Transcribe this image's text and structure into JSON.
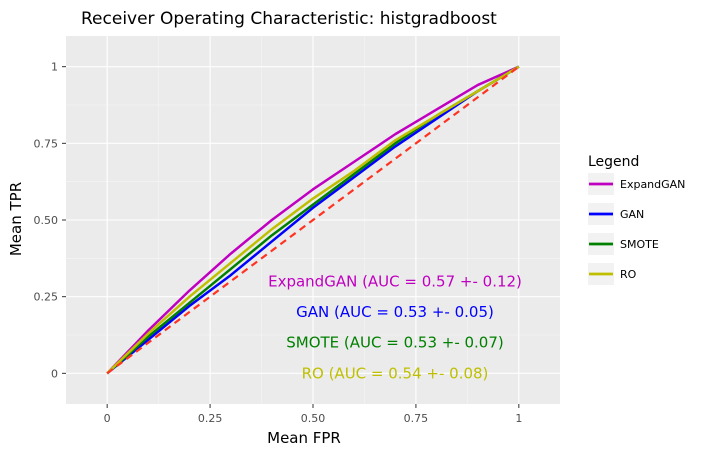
{
  "chart_data": {
    "type": "line",
    "title": "Receiver Operating Characteristic: histgradboost",
    "xlabel": "Mean FPR",
    "ylabel": "Mean TPR",
    "xlim": [
      -0.1,
      1.1
    ],
    "ylim": [
      -0.1,
      1.1
    ],
    "xticks": [
      "0",
      "0.25",
      "0.50",
      "0.75",
      "1"
    ],
    "yticks": [
      "0",
      "0.25",
      "0.50",
      "0.75",
      "1"
    ],
    "grid": true,
    "legend_title": "Legend",
    "legend_position": "right",
    "x": [
      0,
      0.1,
      0.2,
      0.3,
      0.4,
      0.5,
      0.6,
      0.7,
      0.8,
      0.9,
      1.0
    ],
    "series": [
      {
        "name": "ExpandGAN",
        "color": "#c000c0",
        "values": [
          0,
          0.14,
          0.27,
          0.39,
          0.5,
          0.6,
          0.69,
          0.78,
          0.86,
          0.94,
          1.0
        ]
      },
      {
        "name": "GAN",
        "color": "#0000ff",
        "values": [
          0,
          0.11,
          0.22,
          0.32,
          0.43,
          0.54,
          0.64,
          0.74,
          0.83,
          0.92,
          1.0
        ]
      },
      {
        "name": "SMOTE",
        "color": "#008000",
        "values": [
          0,
          0.12,
          0.23,
          0.34,
          0.45,
          0.55,
          0.65,
          0.75,
          0.84,
          0.92,
          1.0
        ]
      },
      {
        "name": "RO",
        "color": "#bfbf00",
        "values": [
          0,
          0.13,
          0.25,
          0.36,
          0.47,
          0.57,
          0.66,
          0.76,
          0.84,
          0.92,
          1.0
        ]
      }
    ],
    "diagonal": {
      "color": "#ff3322",
      "values": [
        [
          0,
          0
        ],
        [
          1,
          1
        ]
      ]
    },
    "annotations": [
      {
        "text": "ExpandGAN (AUC = 0.57 +- 0.12)",
        "color": "#c000c0",
        "x": 0.5,
        "y": 0.3
      },
      {
        "text": "GAN (AUC = 0.53 +- 0.05)",
        "color": "#0000ff",
        "x": 0.5,
        "y": 0.2
      },
      {
        "text": "SMOTE (AUC = 0.53 +- 0.07)",
        "color": "#008000",
        "x": 0.5,
        "y": 0.1
      },
      {
        "text": "RO (AUC = 0.54 +- 0.08)",
        "color": "#bfbf00",
        "x": 0.5,
        "y": 0.0
      }
    ]
  }
}
